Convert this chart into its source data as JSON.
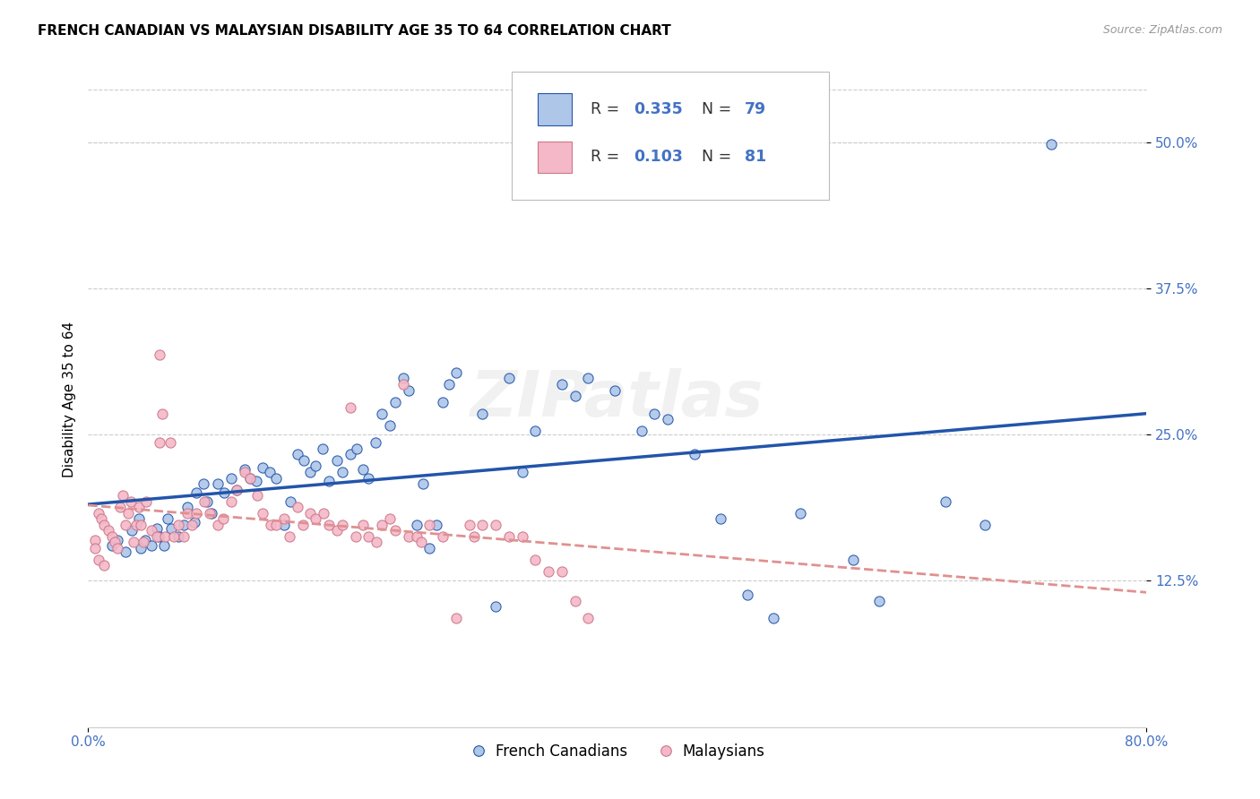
{
  "title": "FRENCH CANADIAN VS MALAYSIAN DISABILITY AGE 35 TO 64 CORRELATION CHART",
  "source": "Source: ZipAtlas.com",
  "ylabel": "Disability Age 35 to 64",
  "xlim": [
    0.0,
    0.8
  ],
  "ylim": [
    0.0,
    0.56
  ],
  "yticks": [
    0.125,
    0.25,
    0.375,
    0.5
  ],
  "xticks": [
    0.0,
    0.8
  ],
  "legend_label_blue": "French Canadians",
  "legend_label_pink": "Malaysians",
  "blue_color": "#aec6e8",
  "pink_color": "#f4b8c8",
  "line_blue": "#2255aa",
  "line_pink": "#e09090",
  "text_blue": "#4472c4",
  "watermark": "ZIPatlas",
  "blue_scatter": [
    [
      0.018,
      0.155
    ],
    [
      0.022,
      0.16
    ],
    [
      0.028,
      0.15
    ],
    [
      0.033,
      0.168
    ],
    [
      0.038,
      0.178
    ],
    [
      0.04,
      0.153
    ],
    [
      0.043,
      0.16
    ],
    [
      0.048,
      0.155
    ],
    [
      0.052,
      0.17
    ],
    [
      0.053,
      0.163
    ],
    [
      0.057,
      0.155
    ],
    [
      0.06,
      0.178
    ],
    [
      0.063,
      0.17
    ],
    [
      0.068,
      0.163
    ],
    [
      0.072,
      0.173
    ],
    [
      0.075,
      0.188
    ],
    [
      0.08,
      0.175
    ],
    [
      0.082,
      0.2
    ],
    [
      0.087,
      0.208
    ],
    [
      0.09,
      0.193
    ],
    [
      0.093,
      0.183
    ],
    [
      0.098,
      0.208
    ],
    [
      0.103,
      0.2
    ],
    [
      0.108,
      0.213
    ],
    [
      0.112,
      0.203
    ],
    [
      0.118,
      0.22
    ],
    [
      0.122,
      0.213
    ],
    [
      0.127,
      0.21
    ],
    [
      0.132,
      0.222
    ],
    [
      0.137,
      0.218
    ],
    [
      0.142,
      0.213
    ],
    [
      0.148,
      0.173
    ],
    [
      0.153,
      0.193
    ],
    [
      0.158,
      0.233
    ],
    [
      0.163,
      0.228
    ],
    [
      0.168,
      0.218
    ],
    [
      0.172,
      0.223
    ],
    [
      0.177,
      0.238
    ],
    [
      0.182,
      0.21
    ],
    [
      0.188,
      0.228
    ],
    [
      0.192,
      0.218
    ],
    [
      0.198,
      0.233
    ],
    [
      0.203,
      0.238
    ],
    [
      0.208,
      0.22
    ],
    [
      0.212,
      0.213
    ],
    [
      0.217,
      0.243
    ],
    [
      0.222,
      0.268
    ],
    [
      0.228,
      0.258
    ],
    [
      0.232,
      0.278
    ],
    [
      0.238,
      0.298
    ],
    [
      0.242,
      0.288
    ],
    [
      0.248,
      0.173
    ],
    [
      0.253,
      0.208
    ],
    [
      0.258,
      0.153
    ],
    [
      0.263,
      0.173
    ],
    [
      0.268,
      0.278
    ],
    [
      0.273,
      0.293
    ],
    [
      0.278,
      0.303
    ],
    [
      0.298,
      0.268
    ],
    [
      0.308,
      0.103
    ],
    [
      0.318,
      0.298
    ],
    [
      0.328,
      0.218
    ],
    [
      0.338,
      0.253
    ],
    [
      0.358,
      0.293
    ],
    [
      0.368,
      0.283
    ],
    [
      0.378,
      0.298
    ],
    [
      0.398,
      0.288
    ],
    [
      0.418,
      0.253
    ],
    [
      0.428,
      0.268
    ],
    [
      0.438,
      0.263
    ],
    [
      0.458,
      0.233
    ],
    [
      0.478,
      0.178
    ],
    [
      0.498,
      0.113
    ],
    [
      0.518,
      0.093
    ],
    [
      0.538,
      0.183
    ],
    [
      0.578,
      0.143
    ],
    [
      0.598,
      0.108
    ],
    [
      0.648,
      0.193
    ],
    [
      0.678,
      0.173
    ],
    [
      0.728,
      0.498
    ]
  ],
  "pink_scatter": [
    [
      0.005,
      0.16
    ],
    [
      0.008,
      0.183
    ],
    [
      0.01,
      0.178
    ],
    [
      0.012,
      0.173
    ],
    [
      0.015,
      0.168
    ],
    [
      0.018,
      0.163
    ],
    [
      0.02,
      0.158
    ],
    [
      0.022,
      0.153
    ],
    [
      0.024,
      0.188
    ],
    [
      0.026,
      0.198
    ],
    [
      0.028,
      0.173
    ],
    [
      0.03,
      0.183
    ],
    [
      0.032,
      0.193
    ],
    [
      0.034,
      0.158
    ],
    [
      0.036,
      0.173
    ],
    [
      0.038,
      0.188
    ],
    [
      0.04,
      0.173
    ],
    [
      0.042,
      0.158
    ],
    [
      0.044,
      0.193
    ],
    [
      0.048,
      0.168
    ],
    [
      0.052,
      0.163
    ],
    [
      0.054,
      0.243
    ],
    [
      0.056,
      0.268
    ],
    [
      0.058,
      0.163
    ],
    [
      0.062,
      0.243
    ],
    [
      0.065,
      0.163
    ],
    [
      0.068,
      0.173
    ],
    [
      0.072,
      0.163
    ],
    [
      0.075,
      0.183
    ],
    [
      0.078,
      0.173
    ],
    [
      0.082,
      0.183
    ],
    [
      0.088,
      0.193
    ],
    [
      0.092,
      0.183
    ],
    [
      0.098,
      0.173
    ],
    [
      0.102,
      0.178
    ],
    [
      0.108,
      0.193
    ],
    [
      0.112,
      0.203
    ],
    [
      0.118,
      0.218
    ],
    [
      0.122,
      0.213
    ],
    [
      0.128,
      0.198
    ],
    [
      0.132,
      0.183
    ],
    [
      0.138,
      0.173
    ],
    [
      0.142,
      0.173
    ],
    [
      0.148,
      0.178
    ],
    [
      0.152,
      0.163
    ],
    [
      0.158,
      0.188
    ],
    [
      0.162,
      0.173
    ],
    [
      0.168,
      0.183
    ],
    [
      0.172,
      0.178
    ],
    [
      0.178,
      0.183
    ],
    [
      0.182,
      0.173
    ],
    [
      0.188,
      0.168
    ],
    [
      0.192,
      0.173
    ],
    [
      0.198,
      0.273
    ],
    [
      0.202,
      0.163
    ],
    [
      0.208,
      0.173
    ],
    [
      0.212,
      0.163
    ],
    [
      0.218,
      0.158
    ],
    [
      0.222,
      0.173
    ],
    [
      0.228,
      0.178
    ],
    [
      0.232,
      0.168
    ],
    [
      0.238,
      0.293
    ],
    [
      0.242,
      0.163
    ],
    [
      0.248,
      0.163
    ],
    [
      0.252,
      0.158
    ],
    [
      0.258,
      0.173
    ],
    [
      0.268,
      0.163
    ],
    [
      0.278,
      0.093
    ],
    [
      0.288,
      0.173
    ],
    [
      0.292,
      0.163
    ],
    [
      0.298,
      0.173
    ],
    [
      0.308,
      0.173
    ],
    [
      0.318,
      0.163
    ],
    [
      0.328,
      0.163
    ],
    [
      0.338,
      0.143
    ],
    [
      0.348,
      0.133
    ],
    [
      0.358,
      0.133
    ],
    [
      0.368,
      0.108
    ],
    [
      0.378,
      0.093
    ],
    [
      0.005,
      0.153
    ],
    [
      0.008,
      0.143
    ],
    [
      0.012,
      0.138
    ],
    [
      0.054,
      0.318
    ]
  ]
}
